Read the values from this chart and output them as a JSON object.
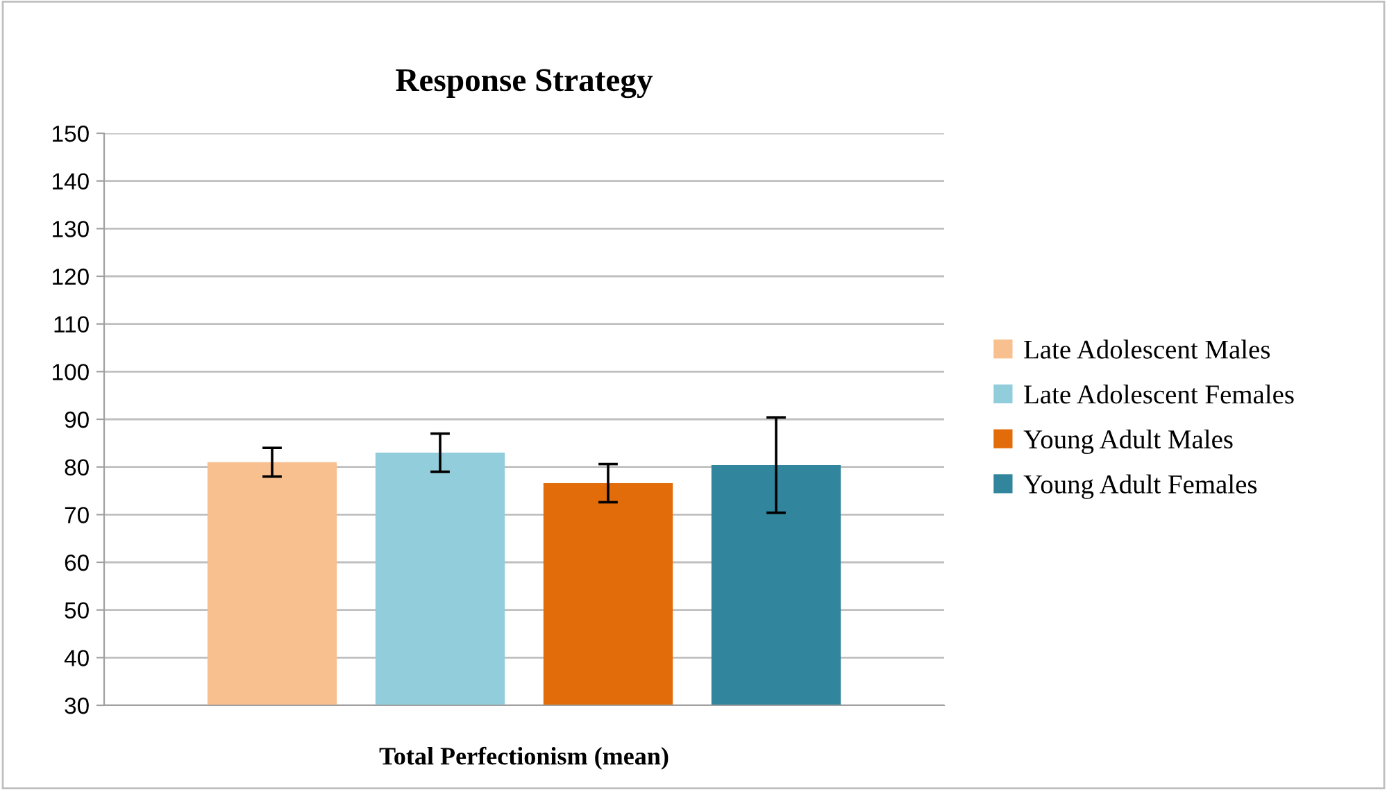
{
  "chart_data": {
    "type": "bar",
    "title": "Response Strategy",
    "xlabel": "Total Perfectionism (mean)",
    "categories": [
      null
    ],
    "series": [
      {
        "name": "Late Adolescent Males",
        "color": "#f9c08f",
        "values": [
          81
        ],
        "errors": [
          3
        ]
      },
      {
        "name": "Late Adolescent Females",
        "color": "#92cddc",
        "values": [
          83
        ],
        "errors": [
          4
        ]
      },
      {
        "name": "Young Adult Males",
        "color": "#e36c0a",
        "values": [
          76.6
        ],
        "errors": [
          4
        ]
      },
      {
        "name": "Young Adult Females",
        "color": "#31859c",
        "values": [
          80.4
        ],
        "errors": [
          10
        ]
      }
    ],
    "ylim": [
      30,
      150
    ],
    "yticks": [
      30,
      40,
      50,
      60,
      70,
      80,
      90,
      100,
      110,
      120,
      130,
      140,
      150
    ],
    "grid": "y",
    "legend": "right"
  }
}
